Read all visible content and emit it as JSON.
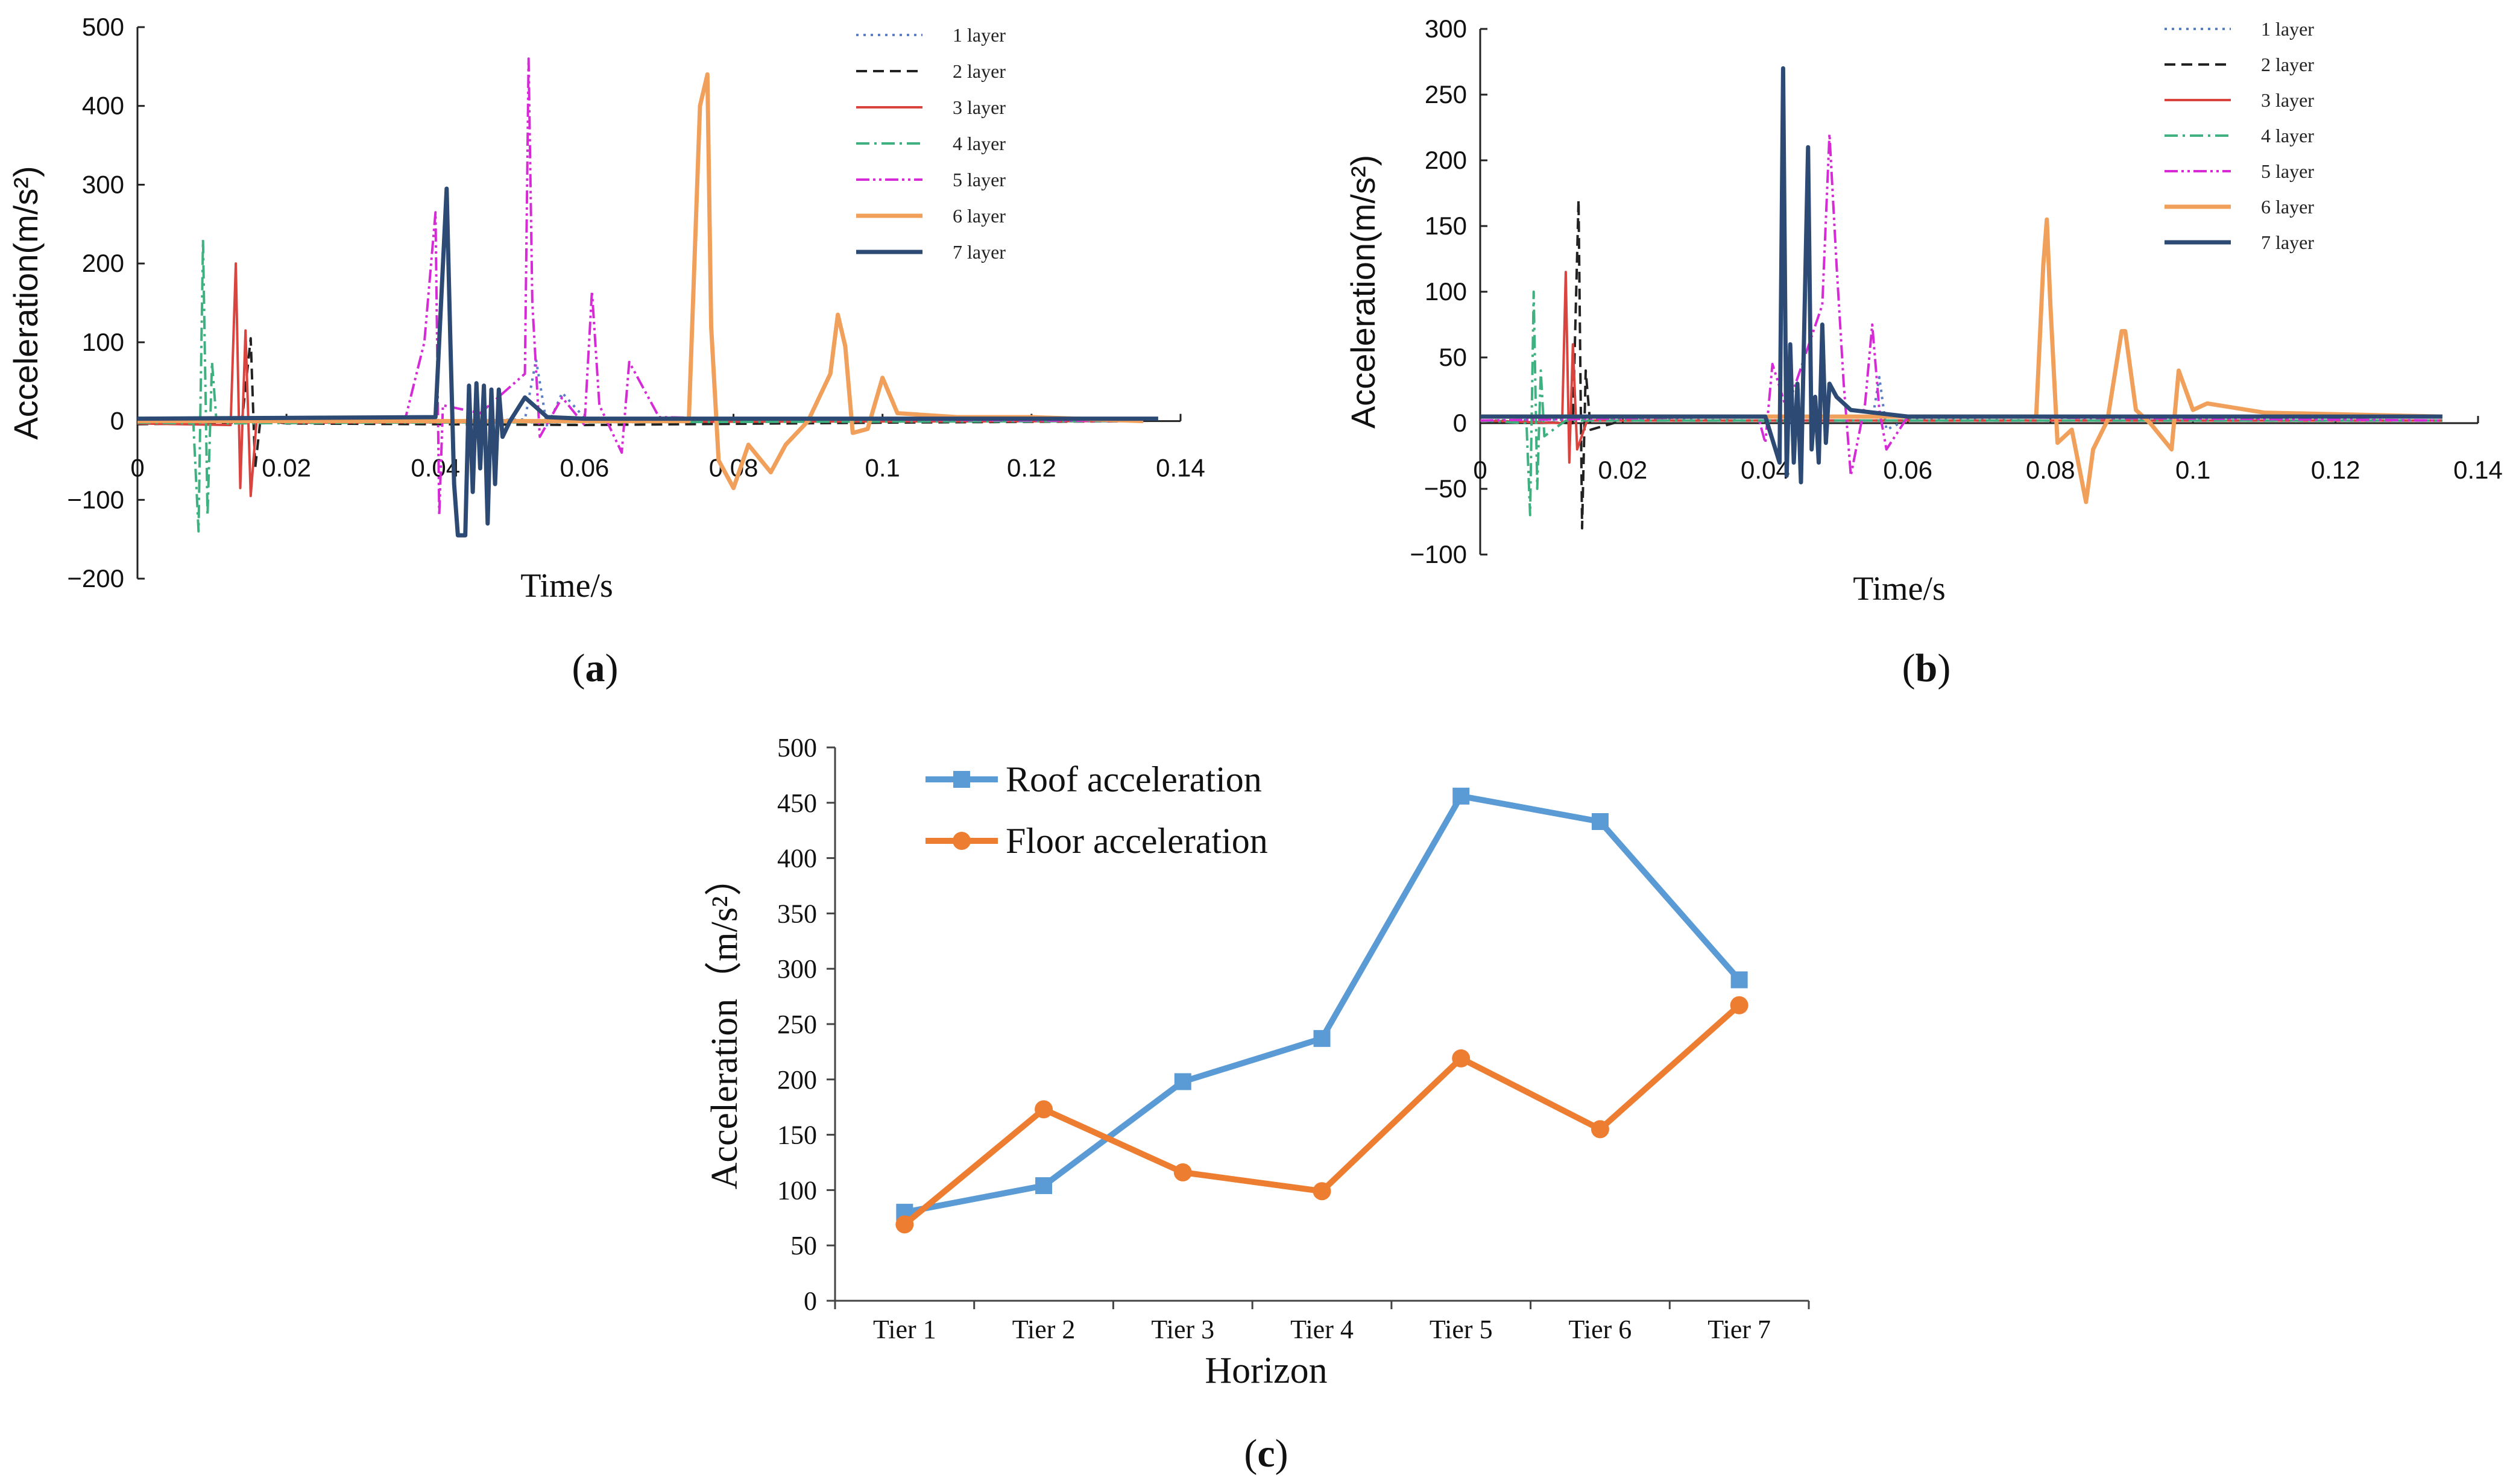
{
  "chart_data": [
    {
      "panel_label": "(a)",
      "type": "line",
      "xlabel": "Time/s",
      "ylabel": "Acceleration(m/s²)",
      "xlim": [
        0,
        0.14
      ],
      "ylim": [
        -200,
        500
      ],
      "xticks": [
        "0",
        "0.02",
        "0.04",
        "0.06",
        "0.08",
        "0.1",
        "0.12",
        "0.14"
      ],
      "yticks": [
        "500",
        "400",
        "300",
        "200",
        "100",
        "0",
        "−100",
        "−200"
      ],
      "legend_position": "top-right",
      "series": [
        {
          "name": "1 layer",
          "color": "#5b7fc4",
          "dash": "dot",
          "x": [
            0,
            0.02,
            0.04,
            0.052,
            0.0535,
            0.055,
            0.057,
            0.06,
            0.08,
            0.1,
            0.12,
            0.135
          ],
          "y": [
            0,
            2,
            0,
            2,
            78,
            -8,
            36,
            4,
            2,
            3,
            2,
            0
          ]
        },
        {
          "name": "2 layer",
          "color": "#222222",
          "dash": "dash",
          "x": [
            0,
            0.014,
            0.0152,
            0.0158,
            0.0165,
            0.02,
            0.06,
            0.1,
            0.135
          ],
          "y": [
            -4,
            -2,
            105,
            -60,
            2,
            -3,
            -5,
            -2,
            0
          ]
        },
        {
          "name": "3 layer",
          "color": "#d9443f",
          "dash": "solid",
          "x": [
            0,
            0.0125,
            0.0132,
            0.0138,
            0.0145,
            0.0152,
            0.016,
            0.02,
            0.06,
            0.135
          ],
          "y": [
            -3,
            -5,
            200,
            -85,
            115,
            -95,
            2,
            -2,
            -1,
            0
          ]
        },
        {
          "name": "4 layer",
          "color": "#3fb07f",
          "dash": "dashdot",
          "x": [
            0,
            0.0075,
            0.0082,
            0.0088,
            0.0094,
            0.01,
            0.0106,
            0.012,
            0.03,
            0.135
          ],
          "y": [
            -2,
            -3,
            -140,
            230,
            -120,
            75,
            0,
            -3,
            -2,
            0
          ]
        },
        {
          "name": "5 layer",
          "color": "#d62ad6",
          "dash": "dashdotdot",
          "x": [
            0,
            0.036,
            0.0385,
            0.04,
            0.0405,
            0.041,
            0.046,
            0.052,
            0.0525,
            0.053,
            0.054,
            0.057,
            0.06,
            0.061,
            0.062,
            0.065,
            0.066,
            0.07,
            0.08,
            0.135
          ],
          "y": [
            0,
            5,
            100,
            265,
            -120,
            20,
            10,
            60,
            460,
            150,
            -20,
            30,
            -5,
            165,
            20,
            -40,
            75,
            5,
            3,
            0
          ]
        },
        {
          "name": "6 layer",
          "color": "#f0a05a",
          "dash": "solid",
          "x": [
            0,
            0.074,
            0.0755,
            0.0765,
            0.077,
            0.078,
            0.08,
            0.082,
            0.085,
            0.087,
            0.09,
            0.093,
            0.094,
            0.095,
            0.096,
            0.098,
            0.1,
            0.102,
            0.11,
            0.12,
            0.135
          ],
          "y": [
            0,
            0,
            400,
            440,
            120,
            -50,
            -85,
            -30,
            -65,
            -30,
            0,
            60,
            135,
            95,
            -15,
            -10,
            55,
            10,
            5,
            5,
            0
          ]
        },
        {
          "name": "7 layer",
          "color": "#2c4a73",
          "dash": "solid",
          "x": [
            0,
            0.04,
            0.0415,
            0.042,
            0.0425,
            0.043,
            0.044,
            0.0445,
            0.045,
            0.0455,
            0.046,
            0.0465,
            0.047,
            0.0475,
            0.048,
            0.0485,
            0.049,
            0.05,
            0.052,
            0.055,
            0.06,
            0.1,
            0.137
          ],
          "y": [
            3,
            5,
            295,
            100,
            -80,
            -145,
            -145,
            45,
            -90,
            48,
            -60,
            45,
            -130,
            40,
            -80,
            40,
            -20,
            0,
            30,
            5,
            3,
            3,
            3
          ]
        }
      ]
    },
    {
      "panel_label": "(b)",
      "type": "line",
      "xlabel": "Time/s",
      "ylabel": "Acceleration(m/s²)",
      "xlim": [
        0,
        0.14
      ],
      "ylim": [
        -100,
        300
      ],
      "xticks": [
        "0",
        "0.02",
        "0.04",
        "0.06",
        "0.08",
        "0.1",
        "0.12",
        "0.14"
      ],
      "yticks": [
        "300",
        "250",
        "200",
        "150",
        "100",
        "50",
        "0",
        "−50",
        "−100"
      ],
      "legend_position": "top-right",
      "series": [
        {
          "name": "1 layer",
          "color": "#5b7fc4",
          "dash": "dot",
          "x": [
            0,
            0.02,
            0.04,
            0.055,
            0.056,
            0.057,
            0.06,
            0.08,
            0.1,
            0.135
          ],
          "y": [
            2,
            3,
            2,
            2,
            35,
            -5,
            3,
            2,
            3,
            2
          ]
        },
        {
          "name": "2 layer",
          "color": "#222222",
          "dash": "dash",
          "x": [
            0,
            0.013,
            0.0138,
            0.0143,
            0.0148,
            0.0155,
            0.02,
            0.06,
            0.135
          ],
          "y": [
            2,
            0,
            170,
            -80,
            40,
            -5,
            2,
            2,
            2
          ]
        },
        {
          "name": "3 layer",
          "color": "#d9443f",
          "dash": "solid",
          "x": [
            0,
            0.0115,
            0.012,
            0.0125,
            0.013,
            0.0136,
            0.015,
            0.03,
            0.135
          ],
          "y": [
            2,
            0,
            115,
            -30,
            60,
            -20,
            2,
            2,
            2
          ]
        },
        {
          "name": "4 layer",
          "color": "#3fb07f",
          "dash": "dashdot",
          "x": [
            0,
            0.0065,
            0.007,
            0.0075,
            0.008,
            0.0085,
            0.009,
            0.012,
            0.135
          ],
          "y": [
            2,
            0,
            -70,
            100,
            -50,
            40,
            -10,
            2,
            2
          ]
        },
        {
          "name": "5 layer",
          "color": "#d62ad6",
          "dash": "dashdotdot",
          "x": [
            0,
            0.039,
            0.04,
            0.041,
            0.043,
            0.048,
            0.049,
            0.05,
            0.051,
            0.052,
            0.054,
            0.055,
            0.056,
            0.057,
            0.06,
            0.135
          ],
          "y": [
            2,
            5,
            -15,
            45,
            10,
            90,
            220,
            120,
            30,
            -40,
            15,
            75,
            10,
            -20,
            5,
            2
          ]
        },
        {
          "name": "6 layer",
          "color": "#f0a05a",
          "dash": "solid",
          "x": [
            0,
            0.078,
            0.079,
            0.0795,
            0.08,
            0.081,
            0.083,
            0.085,
            0.086,
            0.088,
            0.09,
            0.0905,
            0.092,
            0.094,
            0.097,
            0.098,
            0.1,
            0.102,
            0.11,
            0.135
          ],
          "y": [
            5,
            5,
            120,
            155,
            90,
            -15,
            -5,
            -60,
            -20,
            2,
            70,
            70,
            10,
            0,
            -20,
            40,
            10,
            15,
            8,
            5
          ]
        },
        {
          "name": "7 layer",
          "color": "#2c4a73",
          "dash": "solid",
          "x": [
            0,
            0.04,
            0.042,
            0.0425,
            0.043,
            0.0435,
            0.044,
            0.0445,
            0.045,
            0.046,
            0.0465,
            0.047,
            0.0475,
            0.048,
            0.0485,
            0.049,
            0.05,
            0.052,
            0.06,
            0.1,
            0.135
          ],
          "y": [
            5,
            5,
            -30,
            270,
            -40,
            60,
            -30,
            30,
            -45,
            210,
            -20,
            20,
            -30,
            75,
            -15,
            30,
            20,
            10,
            5,
            5,
            5
          ]
        }
      ]
    },
    {
      "panel_label": "(c)",
      "type": "line",
      "xlabel": "Horizon",
      "ylabel": "Acceleration（m/s²）",
      "categories": [
        "Tier 1",
        "Tier 2",
        "Tier 3",
        "Tier 4",
        "Tier 5",
        "Tier 6",
        "Tier 7"
      ],
      "ylim": [
        0,
        500
      ],
      "yticks": [
        "500",
        "450",
        "400",
        "350",
        "300",
        "250",
        "200",
        "150",
        "100",
        "50",
        "0"
      ],
      "legend_position": "top-left",
      "series": [
        {
          "name": "Roof acceleration",
          "color": "#5b9bd5",
          "marker": "square",
          "values": [
            80,
            104,
            198,
            237,
            456,
            433,
            290
          ]
        },
        {
          "name": "Floor acceleration",
          "color": "#ed7d31",
          "marker": "circle",
          "values": [
            69,
            173,
            116,
            99,
            219,
            155,
            267
          ]
        }
      ]
    }
  ]
}
